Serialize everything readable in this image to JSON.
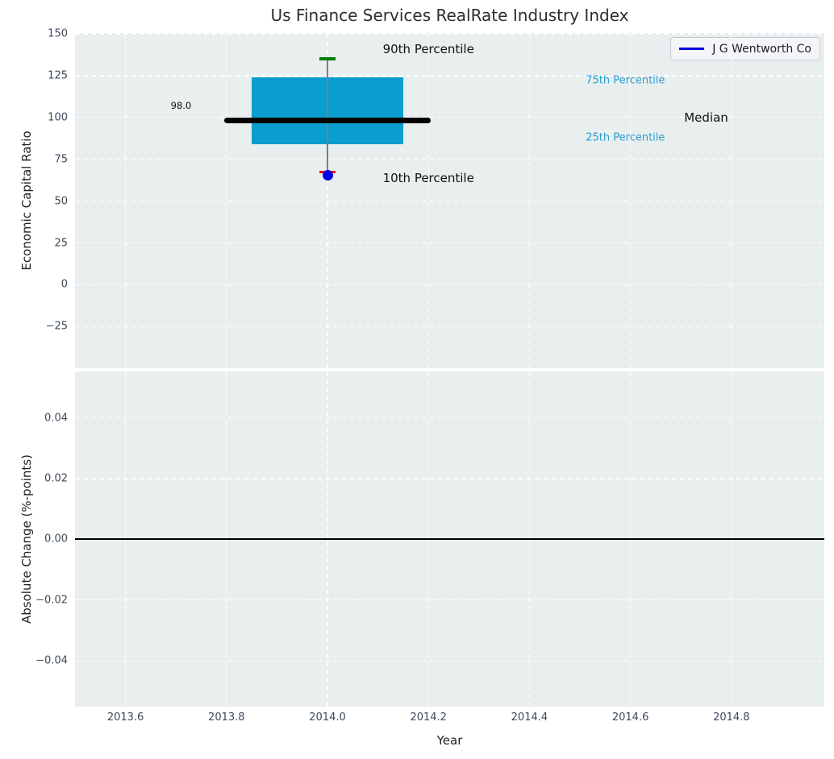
{
  "colors": {
    "axes_bg": "#e9eeee",
    "grid": "#ffffff",
    "box_fill": "#0a9dcf",
    "median_line": "#000000",
    "whisker": "#7f7f7f",
    "cap_90th": "#008000",
    "cap_10th": "#ee0000",
    "company_point": "#0000e6",
    "legend_line": "#0000e6",
    "zero_line": "#000000",
    "tick_text": "#3e4a5a",
    "black_text": "#111111",
    "cyan_text": "#2b9fd3"
  },
  "chart_data": {
    "type": "box",
    "title": "Us Finance Services RealRate Industry Index",
    "xlabel": "Year",
    "legend": {
      "label": "J G Wentworth Co",
      "position": "upper right"
    },
    "grid": "white dashed on light gray",
    "xlim": [
      2013.5,
      2014.984
    ],
    "xticks": [
      {
        "value": 2013.6,
        "label": "2013.6"
      },
      {
        "value": 2013.8,
        "label": "2013.8"
      },
      {
        "value": 2014.0,
        "label": "2014.0"
      },
      {
        "value": 2014.2,
        "label": "2014.2"
      },
      {
        "value": 2014.4,
        "label": "2014.4"
      },
      {
        "value": 2014.6,
        "label": "2014.6"
      },
      {
        "value": 2014.8,
        "label": "2014.8"
      }
    ],
    "panels": [
      {
        "ylabel": "Economic Capital Ratio",
        "ylim": [
          -49.9,
          150.5
        ],
        "yticks": [
          {
            "value": 150,
            "label": "150"
          },
          {
            "value": 125,
            "label": "125"
          },
          {
            "value": 100,
            "label": "100"
          },
          {
            "value": 75,
            "label": "75"
          },
          {
            "value": 50,
            "label": "50"
          },
          {
            "value": 25,
            "label": "25"
          },
          {
            "value": 0,
            "label": "0"
          },
          {
            "value": -25,
            "label": "−25"
          }
        ],
        "box": {
          "year": 2014.0,
          "x_range": [
            2013.85,
            2014.15
          ],
          "median_x_range": [
            2013.795,
            2014.205
          ],
          "p90": 135,
          "p75": 124,
          "median": 98.0,
          "p25": 84,
          "p10": 67.5,
          "median_value_label": "98.0"
        },
        "point": {
          "name": "J G Wentworth Co",
          "x": 2014.0,
          "y": 65.5
        },
        "annotations": [
          {
            "text": "90th Percentile",
            "x": 2014.2,
            "y": 141,
            "size": 15,
            "color": "#111111"
          },
          {
            "text": "10th Percentile",
            "x": 2014.2,
            "y": 64,
            "size": 15,
            "color": "#111111"
          },
          {
            "text": "Median",
            "x": 2014.75,
            "y": 100,
            "size": 15,
            "color": "#111111"
          },
          {
            "text": "75th Percentile",
            "x": 2014.59,
            "y": 122,
            "size": 13,
            "color": "#2b9fd3"
          },
          {
            "text": "25th Percentile",
            "x": 2014.59,
            "y": 88,
            "size": 13,
            "color": "#2b9fd3"
          },
          {
            "text": "98.0",
            "x": 2013.71,
            "y": 107,
            "size": 11.5,
            "color": "#111111"
          }
        ]
      },
      {
        "ylabel": "Absolute Change (%-points)",
        "ylim": [
          -0.0551,
          0.0553
        ],
        "yticks": [
          {
            "value": 0.04,
            "label": "0.04"
          },
          {
            "value": 0.02,
            "label": "0.02"
          },
          {
            "value": 0.0,
            "label": "0.00"
          },
          {
            "value": -0.02,
            "label": "−0.02"
          },
          {
            "value": -0.04,
            "label": "−0.04"
          }
        ],
        "zero_line": 0.0
      }
    ]
  }
}
